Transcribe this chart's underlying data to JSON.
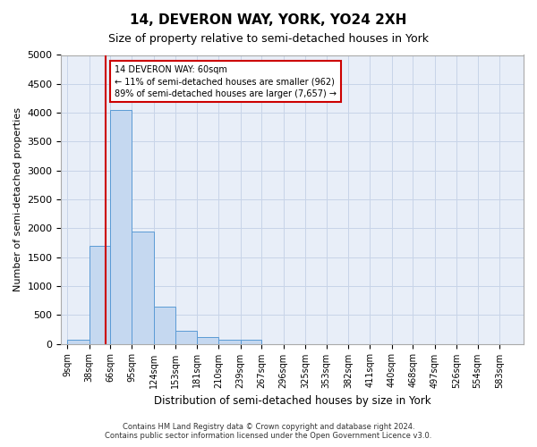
{
  "title": "14, DEVERON WAY, YORK, YO24 2XH",
  "subtitle": "Size of property relative to semi-detached houses in York",
  "xlabel": "Distribution of semi-detached houses by size in York",
  "ylabel": "Number of semi-detached properties",
  "bin_edges": [
    9,
    38,
    66,
    95,
    124,
    153,
    181,
    210,
    239,
    267,
    296,
    325,
    353,
    382,
    411,
    440,
    468,
    497,
    526,
    554,
    583
  ],
  "bar_heights": [
    75,
    1700,
    4050,
    1950,
    650,
    230,
    110,
    75,
    65,
    0,
    0,
    0,
    0,
    0,
    0,
    0,
    0,
    0,
    0,
    0
  ],
  "bar_color": "#c5d8f0",
  "bar_edge_color": "#5b9bd5",
  "property_size": 60,
  "red_line_color": "#cc0000",
  "annotation_text": "14 DEVERON WAY: 60sqm\n← 11% of semi-detached houses are smaller (962)\n89% of semi-detached houses are larger (7,657) →",
  "annotation_box_color": "#cc0000",
  "ylim": [
    0,
    5000
  ],
  "yticks": [
    0,
    500,
    1000,
    1500,
    2000,
    2500,
    3000,
    3500,
    4000,
    4500,
    5000
  ],
  "grid_color": "#c8d4e8",
  "bg_color": "#e8eef8",
  "footer_line1": "Contains HM Land Registry data © Crown copyright and database right 2024.",
  "footer_line2": "Contains public sector information licensed under the Open Government Licence v3.0."
}
